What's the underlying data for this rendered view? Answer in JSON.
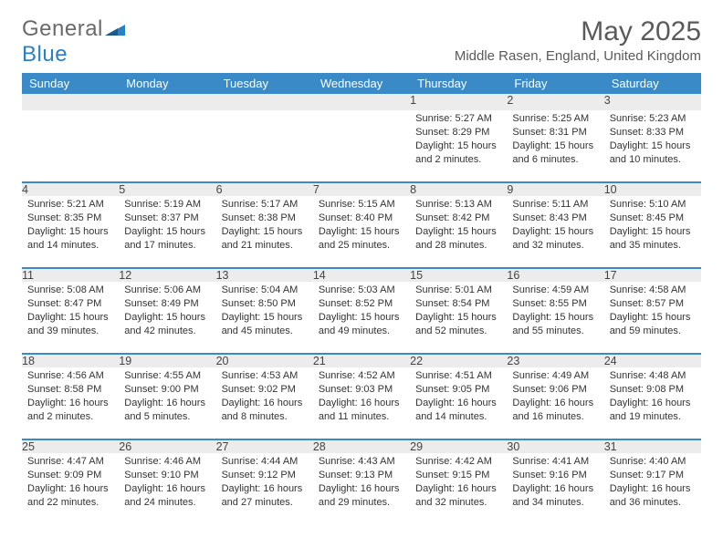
{
  "brand": {
    "text_general": "General",
    "text_blue": "Blue",
    "logo_color": "#2b7fc4"
  },
  "title": "May 2025",
  "location": "Middle Rasen, England, United Kingdom",
  "day_headers": [
    "Sunday",
    "Monday",
    "Tuesday",
    "Wednesday",
    "Thursday",
    "Friday",
    "Saturday"
  ],
  "colors": {
    "header_bg": "#3a8ac7",
    "header_text": "#ffffff",
    "daynum_bg": "#ececec",
    "separator": "#3a8ac7",
    "text": "#333333",
    "title_color": "#5a5a5a"
  },
  "weeks": [
    [
      null,
      null,
      null,
      null,
      {
        "n": "1",
        "sr": "5:27 AM",
        "ss": "8:29 PM",
        "dl": "15 hours and 2 minutes."
      },
      {
        "n": "2",
        "sr": "5:25 AM",
        "ss": "8:31 PM",
        "dl": "15 hours and 6 minutes."
      },
      {
        "n": "3",
        "sr": "5:23 AM",
        "ss": "8:33 PM",
        "dl": "15 hours and 10 minutes."
      }
    ],
    [
      {
        "n": "4",
        "sr": "5:21 AM",
        "ss": "8:35 PM",
        "dl": "15 hours and 14 minutes."
      },
      {
        "n": "5",
        "sr": "5:19 AM",
        "ss": "8:37 PM",
        "dl": "15 hours and 17 minutes."
      },
      {
        "n": "6",
        "sr": "5:17 AM",
        "ss": "8:38 PM",
        "dl": "15 hours and 21 minutes."
      },
      {
        "n": "7",
        "sr": "5:15 AM",
        "ss": "8:40 PM",
        "dl": "15 hours and 25 minutes."
      },
      {
        "n": "8",
        "sr": "5:13 AM",
        "ss": "8:42 PM",
        "dl": "15 hours and 28 minutes."
      },
      {
        "n": "9",
        "sr": "5:11 AM",
        "ss": "8:43 PM",
        "dl": "15 hours and 32 minutes."
      },
      {
        "n": "10",
        "sr": "5:10 AM",
        "ss": "8:45 PM",
        "dl": "15 hours and 35 minutes."
      }
    ],
    [
      {
        "n": "11",
        "sr": "5:08 AM",
        "ss": "8:47 PM",
        "dl": "15 hours and 39 minutes."
      },
      {
        "n": "12",
        "sr": "5:06 AM",
        "ss": "8:49 PM",
        "dl": "15 hours and 42 minutes."
      },
      {
        "n": "13",
        "sr": "5:04 AM",
        "ss": "8:50 PM",
        "dl": "15 hours and 45 minutes."
      },
      {
        "n": "14",
        "sr": "5:03 AM",
        "ss": "8:52 PM",
        "dl": "15 hours and 49 minutes."
      },
      {
        "n": "15",
        "sr": "5:01 AM",
        "ss": "8:54 PM",
        "dl": "15 hours and 52 minutes."
      },
      {
        "n": "16",
        "sr": "4:59 AM",
        "ss": "8:55 PM",
        "dl": "15 hours and 55 minutes."
      },
      {
        "n": "17",
        "sr": "4:58 AM",
        "ss": "8:57 PM",
        "dl": "15 hours and 59 minutes."
      }
    ],
    [
      {
        "n": "18",
        "sr": "4:56 AM",
        "ss": "8:58 PM",
        "dl": "16 hours and 2 minutes."
      },
      {
        "n": "19",
        "sr": "4:55 AM",
        "ss": "9:00 PM",
        "dl": "16 hours and 5 minutes."
      },
      {
        "n": "20",
        "sr": "4:53 AM",
        "ss": "9:02 PM",
        "dl": "16 hours and 8 minutes."
      },
      {
        "n": "21",
        "sr": "4:52 AM",
        "ss": "9:03 PM",
        "dl": "16 hours and 11 minutes."
      },
      {
        "n": "22",
        "sr": "4:51 AM",
        "ss": "9:05 PM",
        "dl": "16 hours and 14 minutes."
      },
      {
        "n": "23",
        "sr": "4:49 AM",
        "ss": "9:06 PM",
        "dl": "16 hours and 16 minutes."
      },
      {
        "n": "24",
        "sr": "4:48 AM",
        "ss": "9:08 PM",
        "dl": "16 hours and 19 minutes."
      }
    ],
    [
      {
        "n": "25",
        "sr": "4:47 AM",
        "ss": "9:09 PM",
        "dl": "16 hours and 22 minutes."
      },
      {
        "n": "26",
        "sr": "4:46 AM",
        "ss": "9:10 PM",
        "dl": "16 hours and 24 minutes."
      },
      {
        "n": "27",
        "sr": "4:44 AM",
        "ss": "9:12 PM",
        "dl": "16 hours and 27 minutes."
      },
      {
        "n": "28",
        "sr": "4:43 AM",
        "ss": "9:13 PM",
        "dl": "16 hours and 29 minutes."
      },
      {
        "n": "29",
        "sr": "4:42 AM",
        "ss": "9:15 PM",
        "dl": "16 hours and 32 minutes."
      },
      {
        "n": "30",
        "sr": "4:41 AM",
        "ss": "9:16 PM",
        "dl": "16 hours and 34 minutes."
      },
      {
        "n": "31",
        "sr": "4:40 AM",
        "ss": "9:17 PM",
        "dl": "16 hours and 36 minutes."
      }
    ]
  ],
  "labels": {
    "sunrise": "Sunrise:",
    "sunset": "Sunset:",
    "daylight": "Daylight:"
  }
}
